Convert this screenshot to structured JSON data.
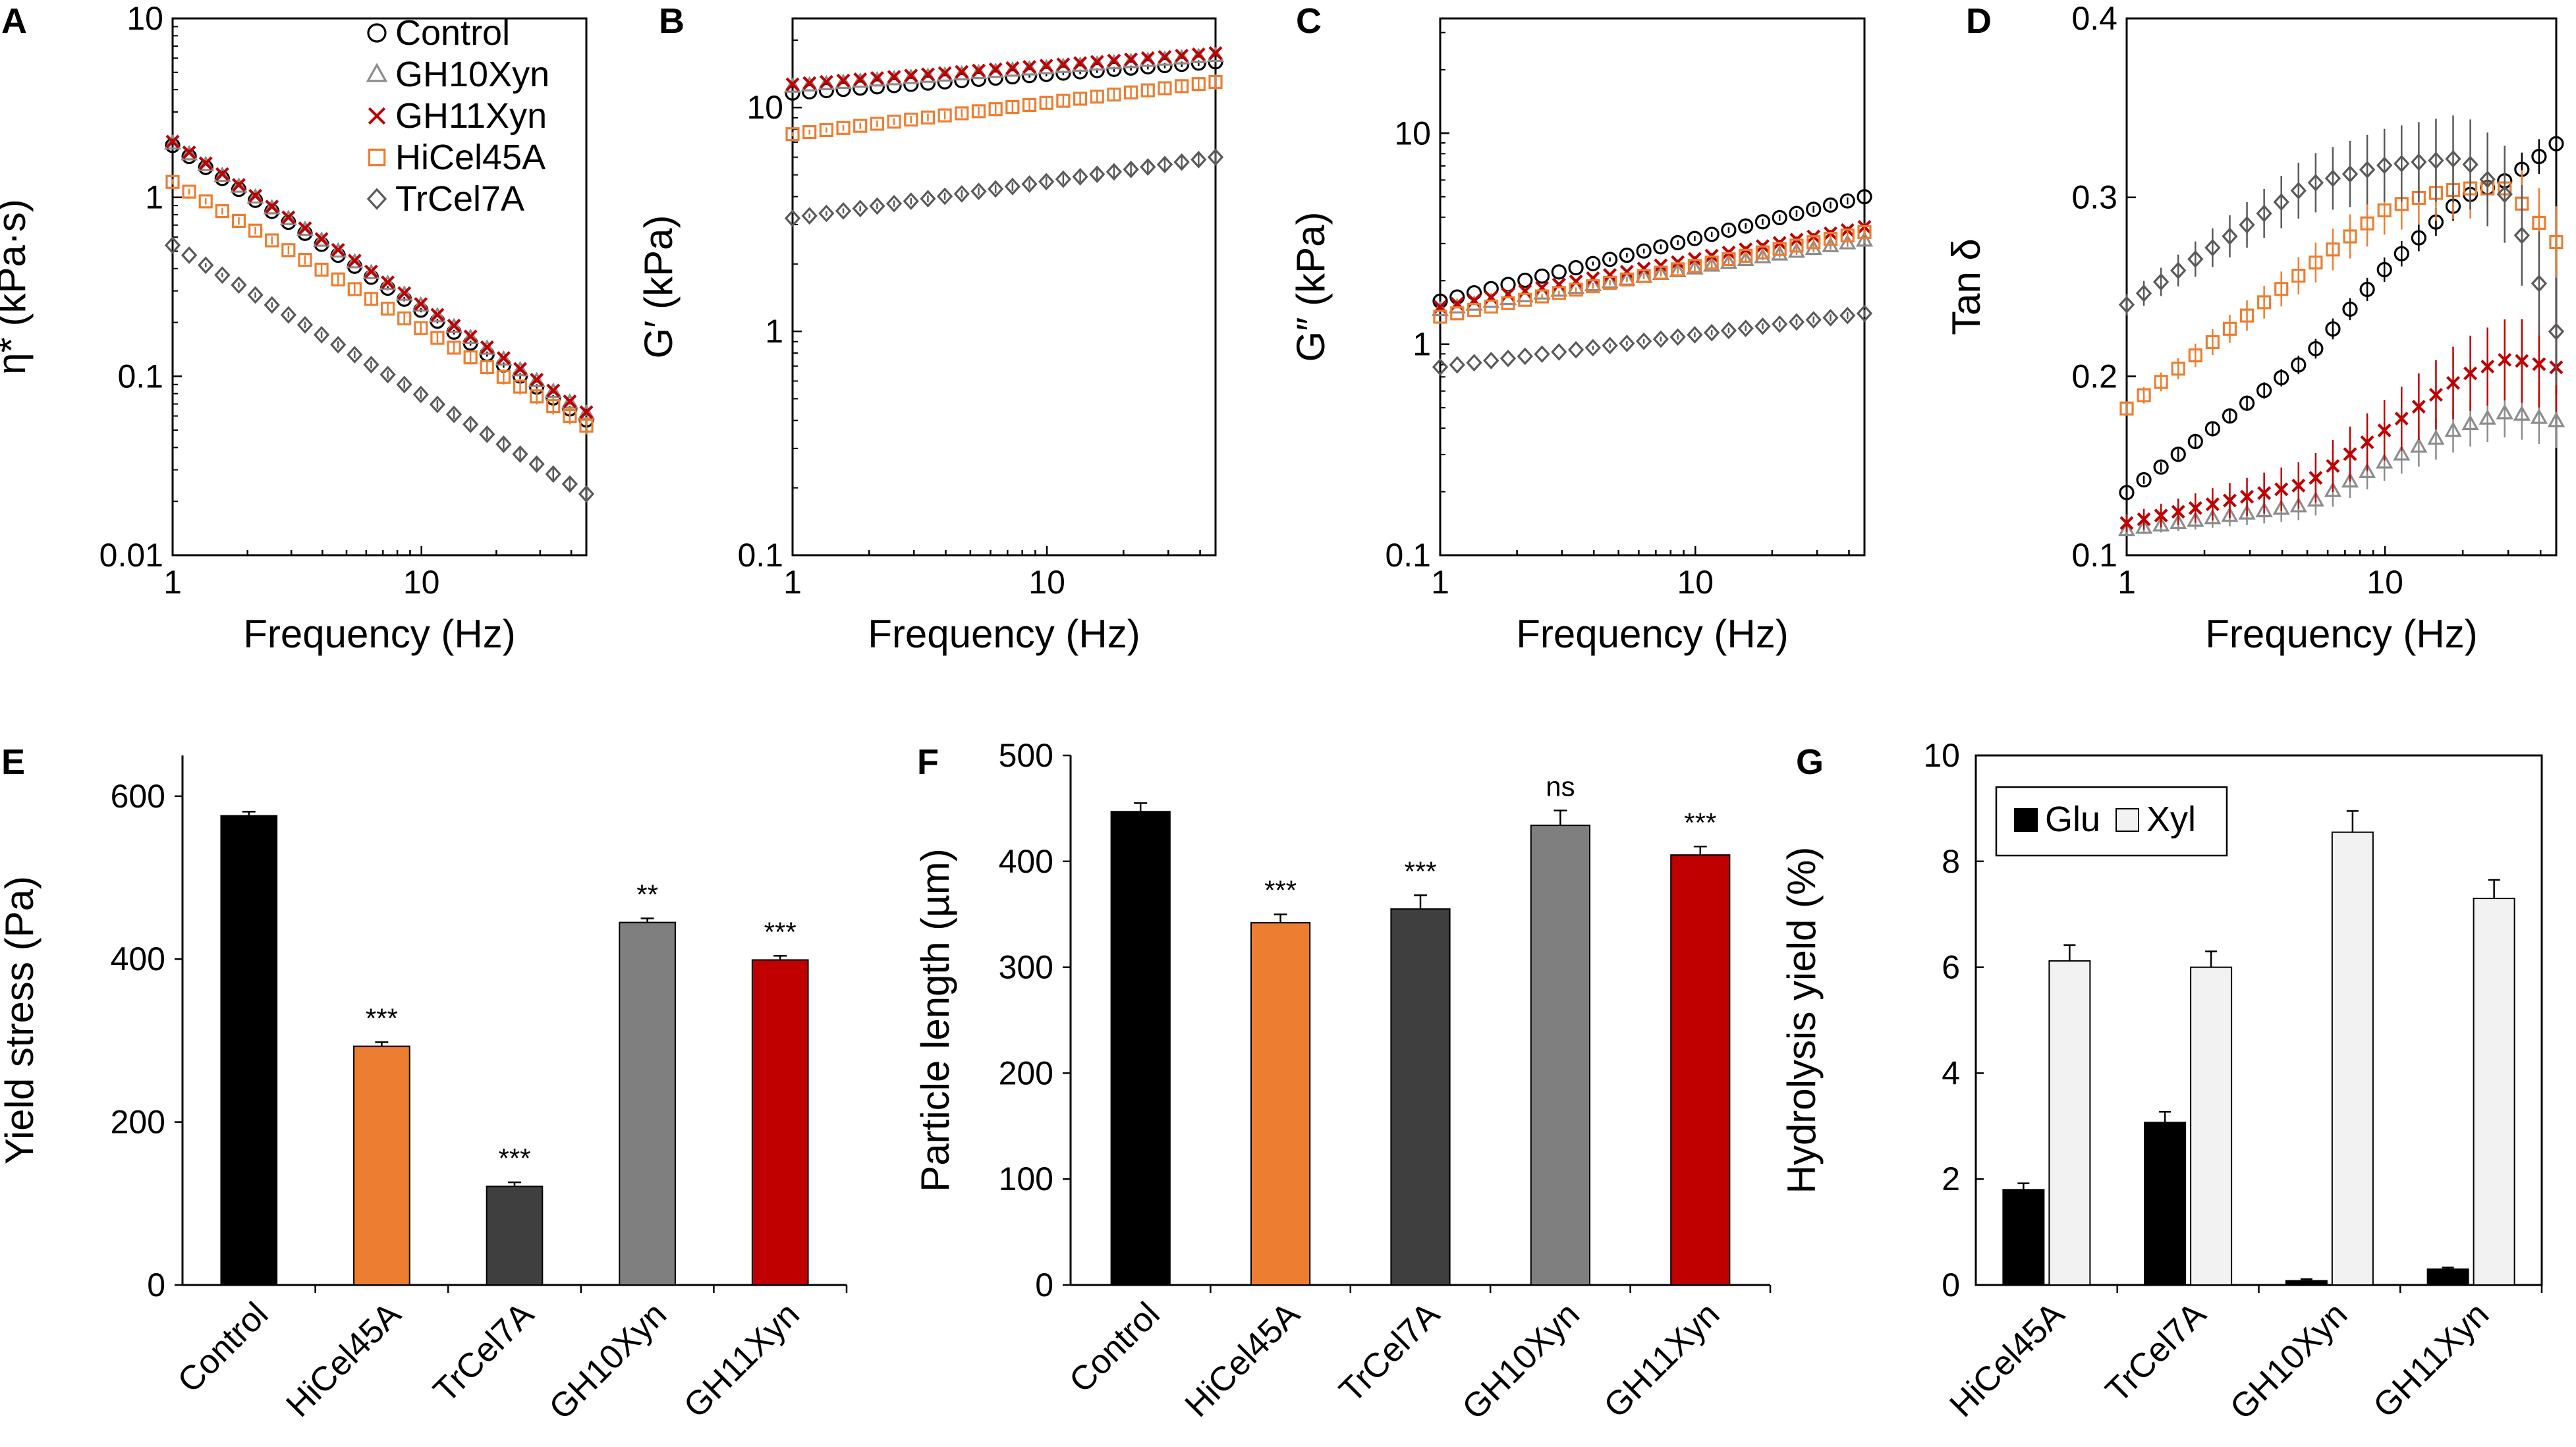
{
  "colors": {
    "control": "#000000",
    "gh10xyn": "#8c8c8c",
    "gh11xyn": "#c00000",
    "hicel45a": "#ed7d31",
    "trcel7a": "#595959",
    "bar_control": "#000000",
    "bar_hicel45a": "#ed7d31",
    "bar_trcel7a": "#3f3f3f",
    "bar_gh10xyn": "#7f7f7f",
    "bar_gh11xyn": "#c00000",
    "glu": "#000000",
    "xyl": "#f2f2f2"
  },
  "chart_data": [
    {
      "id": "A",
      "type": "scatter",
      "letter": "A",
      "xscale": "log",
      "yscale": "log",
      "xlim": [
        1,
        46
      ],
      "ylim": [
        0.01,
        10
      ],
      "xticks": [
        "1",
        "10"
      ],
      "yticks": [
        "0.01",
        "0.1",
        "1",
        "10"
      ],
      "xlabel": "Frequency (Hz)",
      "ylabel": "η* (kPa·s)",
      "legend": {
        "position": "top-right",
        "entries": [
          {
            "label": "Control",
            "marker": "circle"
          },
          {
            "label": "GH10Xyn",
            "marker": "triangle"
          },
          {
            "label": "GH11Xyn",
            "marker": "cross"
          },
          {
            "label": "HiCel45A",
            "marker": "square"
          },
          {
            "label": "TrCel7A",
            "marker": "diamond"
          }
        ]
      },
      "series": [
        {
          "name": "Control",
          "y_at_1Hz": 1.95,
          "y_at_46Hz": 0.057,
          "err": 0.04
        },
        {
          "name": "GH10Xyn",
          "y_at_1Hz": 2.0,
          "y_at_46Hz": 0.062,
          "err": 0.03
        },
        {
          "name": "GH11Xyn",
          "y_at_1Hz": 2.05,
          "y_at_46Hz": 0.063,
          "err": 0.03
        },
        {
          "name": "HiCel45A",
          "y_at_1Hz": 1.22,
          "y_at_46Hz": 0.053,
          "err": 0.12
        },
        {
          "name": "TrCel7A",
          "y_at_1Hz": 0.54,
          "y_at_46Hz": 0.022,
          "err": 0.08
        }
      ]
    },
    {
      "id": "B",
      "type": "scatter",
      "letter": "B",
      "xscale": "log",
      "yscale": "log",
      "xlim": [
        1,
        46
      ],
      "ylim": [
        0.1,
        25
      ],
      "xticks": [
        "1",
        "10"
      ],
      "yticks": [
        "0.1",
        "1",
        "10"
      ],
      "xlabel": "Frequency (Hz)",
      "ylabel": "G′ (kPa)",
      "series": [
        {
          "name": "Control",
          "y_at_1Hz": 11.6,
          "y_at_46Hz": 16.0,
          "err": 0.03
        },
        {
          "name": "GH10Xyn",
          "y_at_1Hz": 12.4,
          "y_at_46Hz": 17.0,
          "err": 0.02
        },
        {
          "name": "GH11Xyn",
          "y_at_1Hz": 12.7,
          "y_at_46Hz": 17.5,
          "err": 0.02
        },
        {
          "name": "HiCel45A",
          "y_at_1Hz": 7.6,
          "y_at_46Hz": 13.0,
          "err": 0.08
        },
        {
          "name": "TrCel7A",
          "y_at_1Hz": 3.2,
          "y_at_46Hz": 6.0,
          "err": 0.07
        }
      ]
    },
    {
      "id": "C",
      "type": "scatter",
      "letter": "C",
      "xscale": "log",
      "yscale": "log",
      "xlim": [
        1,
        46
      ],
      "ylim": [
        0.1,
        35
      ],
      "xticks": [
        "1",
        "10"
      ],
      "yticks": [
        "0.1",
        "1",
        "10"
      ],
      "xlabel": "Frequency (Hz)",
      "ylabel": "G″ (kPa)",
      "series": [
        {
          "name": "Control",
          "y_at_1Hz": 1.6,
          "y_at_46Hz": 5.0,
          "err": 0.04
        },
        {
          "name": "GH10Xyn",
          "y_at_1Hz": 1.45,
          "y_at_46Hz": 3.1,
          "err": 0.04
        },
        {
          "name": "GH11Xyn",
          "y_at_1Hz": 1.5,
          "y_at_46Hz": 3.6,
          "err": 0.04
        },
        {
          "name": "HiCel45A",
          "y_at_1Hz": 1.35,
          "y_at_46Hz": 3.4,
          "err": 0.05
        },
        {
          "name": "TrCel7A",
          "y_at_1Hz": 0.78,
          "y_at_46Hz": 1.4,
          "err": 0.04
        }
      ]
    },
    {
      "id": "D",
      "type": "scatter",
      "letter": "D",
      "xscale": "log",
      "yscale": "linear",
      "xlim": [
        1,
        46
      ],
      "ylim": [
        0.1,
        0.4
      ],
      "xticks": [
        "1",
        "10"
      ],
      "yticks": [
        "0.1",
        "0.2",
        "0.3",
        "0.4"
      ],
      "xlabel": "Frequency (Hz)",
      "ylabel": "Tan δ",
      "series": [
        {
          "name": "Control",
          "points": [
            [
              1,
              0.135
            ],
            [
              5,
              0.21
            ],
            [
              10,
              0.26
            ],
            [
              20,
              0.3
            ],
            [
              30,
              0.31
            ],
            [
              46,
              0.33
            ]
          ],
          "err": 0.01
        },
        {
          "name": "GH10Xyn",
          "points": [
            [
              1,
              0.114
            ],
            [
              5,
              0.128
            ],
            [
              10,
              0.152
            ],
            [
              20,
              0.172
            ],
            [
              30,
              0.18
            ],
            [
              46,
              0.175
            ]
          ],
          "err": 0.015
        },
        {
          "name": "GH11Xyn",
          "points": [
            [
              1,
              0.118
            ],
            [
              5,
              0.14
            ],
            [
              10,
              0.17
            ],
            [
              20,
              0.2
            ],
            [
              30,
              0.21
            ],
            [
              46,
              0.205
            ]
          ],
          "err": 0.025
        },
        {
          "name": "HiCel45A",
          "points": [
            [
              1,
              0.182
            ],
            [
              5,
              0.26
            ],
            [
              10,
              0.293
            ],
            [
              15,
              0.302
            ],
            [
              20,
              0.305
            ],
            [
              30,
              0.305
            ],
            [
              46,
              0.275
            ]
          ],
          "err": 0.02
        },
        {
          "name": "TrCel7A",
          "points": [
            [
              1,
              0.24
            ],
            [
              5,
              0.307
            ],
            [
              10,
              0.318
            ],
            [
              20,
              0.322
            ],
            [
              30,
              0.3
            ],
            [
              46,
              0.225
            ]
          ],
          "err": 0.03
        }
      ]
    },
    {
      "id": "E",
      "type": "bar",
      "letter": "E",
      "categories": [
        "Control",
        "HiCel45A",
        "TrCel7A",
        "GH10Xyn",
        "GH11Xyn"
      ],
      "values": [
        576,
        293,
        121,
        445,
        399
      ],
      "errors": [
        5,
        5,
        5,
        5,
        5
      ],
      "significance": [
        "",
        "***",
        "***",
        "**",
        "***"
      ],
      "ylim": [
        0,
        650
      ],
      "yticks": [
        "0",
        "200",
        "400",
        "600"
      ],
      "ylabel": "Yield stress (Pa)",
      "xlabel": ""
    },
    {
      "id": "F",
      "type": "bar",
      "letter": "F",
      "categories": [
        "Control",
        "HiCel45A",
        "TrCel7A",
        "GH10Xyn",
        "GH11Xyn"
      ],
      "values": [
        447,
        342,
        355,
        434,
        406
      ],
      "errors": [
        8,
        8,
        13,
        14,
        8
      ],
      "significance": [
        "",
        "***",
        "***",
        "ns",
        "***"
      ],
      "ylim": [
        0,
        500
      ],
      "yticks": [
        "0",
        "100",
        "200",
        "300",
        "400",
        "500"
      ],
      "ylabel": "Particle length (µm)",
      "xlabel": ""
    },
    {
      "id": "G",
      "type": "bar",
      "letter": "G",
      "categories": [
        "HiCel45A",
        "TrCel7A",
        "GH10Xyn",
        "GH11Xyn"
      ],
      "series": [
        {
          "name": "Glu",
          "values": [
            1.8,
            3.07,
            0.08,
            0.3
          ],
          "errors": [
            0.12,
            0.2,
            0.03,
            0.03
          ]
        },
        {
          "name": "Xyl",
          "values": [
            6.12,
            6.0,
            8.55,
            7.3
          ],
          "errors": [
            0.3,
            0.3,
            0.4,
            0.35
          ]
        }
      ],
      "legend": {
        "position": "top-left",
        "entries": [
          "Glu",
          "Xyl"
        ]
      },
      "ylim": [
        0,
        10
      ],
      "yticks": [
        "0",
        "2",
        "4",
        "6",
        "8",
        "10"
      ],
      "ylabel": "Hydrolysis yield (%)",
      "xlabel": ""
    }
  ]
}
